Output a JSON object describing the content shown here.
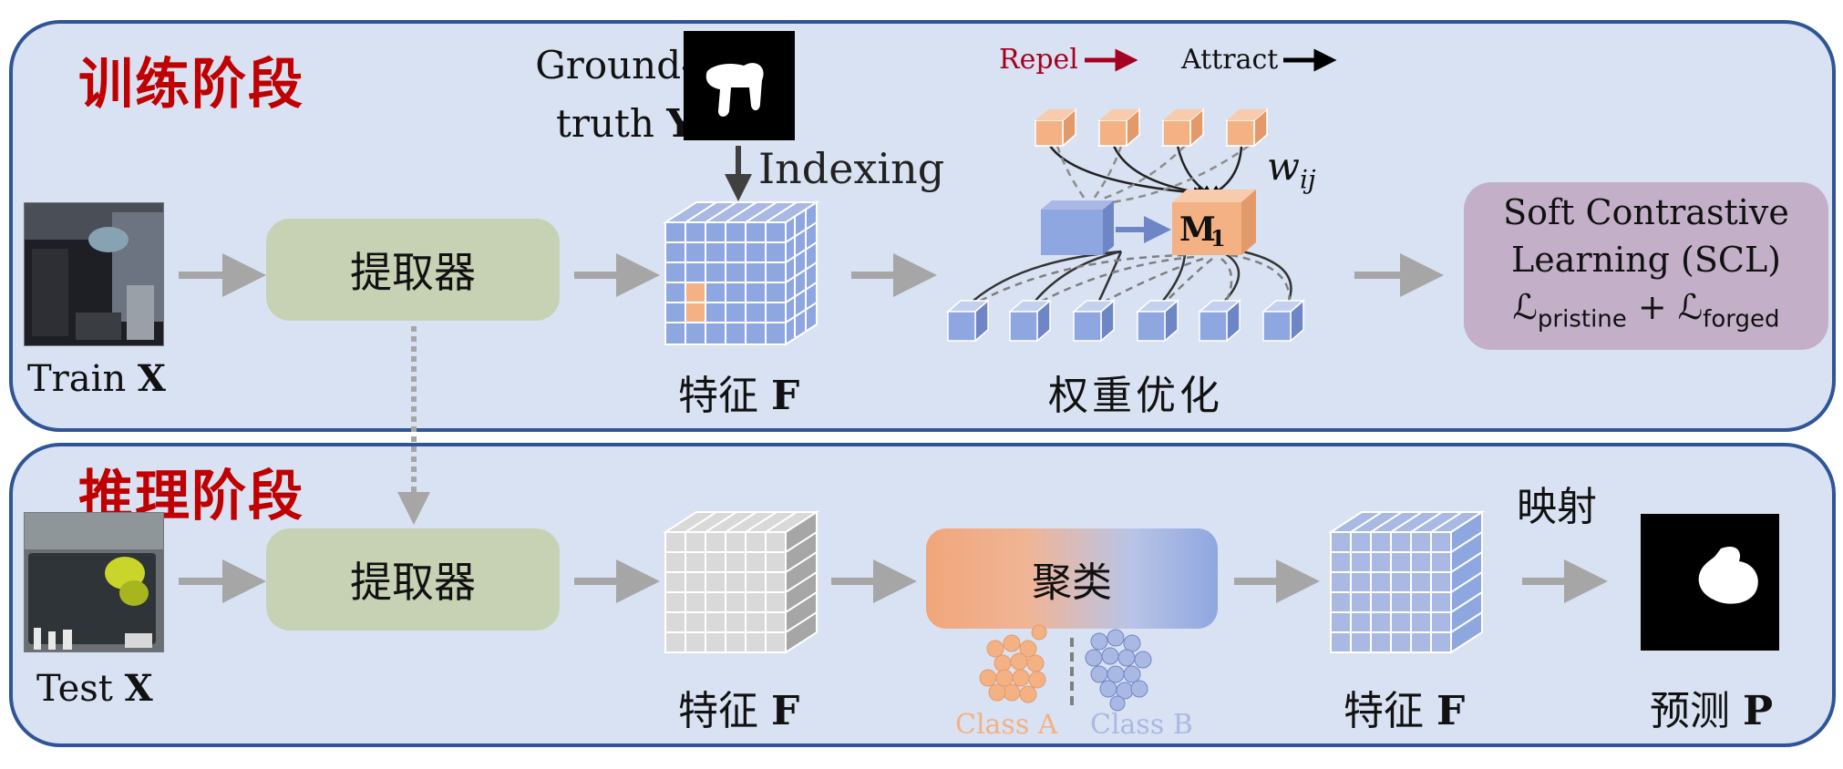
{
  "train_stage": {
    "title": "训练阶段",
    "input_label": "Train",
    "input_var": "X",
    "extractor_label": "提取器",
    "gt_label_line1": "Ground-",
    "gt_label_line2": "truth",
    "gt_var": "Y",
    "indexing_label": "Indexing",
    "feature_label": "特征",
    "feature_var": "F",
    "repel_label": "Repel",
    "attract_label": "Attract",
    "weight_symbol": "w",
    "weight_subscript": "ij",
    "memory_symbol": "M",
    "memory_subscript": "1",
    "weight_opt_label": "权重优化",
    "scl_line1": "Soft Contrastive",
    "scl_line2": "Learning (SCL)",
    "loss_symbol": "ℒ",
    "loss_pristine": "pristine",
    "loss_plus": "+",
    "loss_forged": "forged"
  },
  "infer_stage": {
    "title": "推理阶段",
    "input_label": "Test",
    "input_var": "X",
    "extractor_label": "提取器",
    "feature_label": "特征",
    "feature_var": "F",
    "cluster_label": "聚类",
    "class_a": "Class A",
    "class_b": "Class B",
    "feature2_label": "特征",
    "feature2_var": "F",
    "mapping_label": "映射",
    "predict_label": "预测",
    "predict_var": "P"
  },
  "colors": {
    "panel_bg": "#d9e2f3",
    "panel_border": "#2f5597",
    "title_red": "#c00000",
    "arrow_gray": "#a6a6a6",
    "repel_red": "#a50021",
    "grid_blue": "#8fa7e0",
    "highlight_orange": "#f4b183",
    "extractor_green": "#c7d2b4",
    "scl_purple": "#c3b0c8"
  }
}
